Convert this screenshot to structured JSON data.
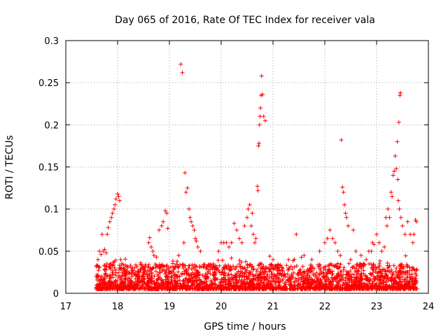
{
  "chart_data": {
    "type": "scatter",
    "title": "Day 065 of 2016, Rate Of TEC Index for receiver vala",
    "xlabel": "GPS time / hours",
    "ylabel": "ROTI / TECUs",
    "xlim": [
      17,
      24
    ],
    "ylim": [
      0,
      0.3
    ],
    "xticks": [
      "17",
      "18",
      "19",
      "20",
      "21",
      "22",
      "23",
      "24"
    ],
    "yticks": [
      "0",
      "0.05",
      "0.1",
      "0.15",
      "0.2",
      "0.25",
      "0.3"
    ],
    "grid": true,
    "marker": "+",
    "color": "#ff0000",
    "data_range_hours": [
      17.58,
      23.78
    ],
    "series": [
      {
        "name": "ROTI",
        "x": [
          17.62,
          17.65,
          17.68,
          17.7,
          17.72,
          17.75,
          17.78,
          17.8,
          17.82,
          17.85,
          17.88,
          17.9,
          17.93,
          17.95,
          17.97,
          18.0,
          18.02,
          18.04,
          18.06,
          18.08,
          18.6,
          18.62,
          18.65,
          18.68,
          18.7,
          18.75,
          18.8,
          18.85,
          18.88,
          18.92,
          18.95,
          18.97,
          19.15,
          19.18,
          19.22,
          19.25,
          19.28,
          19.3,
          19.32,
          19.35,
          19.38,
          19.4,
          19.42,
          19.45,
          19.48,
          19.5,
          19.52,
          19.55,
          19.6,
          19.95,
          20.0,
          20.05,
          20.1,
          20.15,
          20.2,
          20.25,
          20.3,
          20.35,
          20.4,
          20.45,
          20.5,
          20.52,
          20.55,
          20.58,
          20.6,
          20.62,
          20.65,
          20.67,
          20.7,
          20.71,
          20.72,
          20.73,
          20.74,
          20.75,
          20.76,
          20.77,
          20.78,
          20.8,
          20.82,
          20.85,
          21.0,
          21.3,
          21.45,
          21.6,
          21.75,
          21.9,
          22.0,
          22.05,
          22.1,
          22.15,
          22.2,
          22.25,
          22.3,
          22.32,
          22.34,
          22.36,
          22.38,
          22.4,
          22.42,
          22.45,
          22.5,
          22.55,
          22.6,
          22.7,
          22.8,
          22.85,
          22.9,
          22.92,
          22.95,
          23.0,
          23.05,
          23.1,
          23.15,
          23.18,
          23.2,
          23.22,
          23.25,
          23.28,
          23.3,
          23.32,
          23.34,
          23.36,
          23.38,
          23.4,
          23.41,
          23.42,
          23.43,
          23.44,
          23.45,
          23.46,
          23.47,
          23.5,
          23.55,
          23.6,
          23.65,
          23.7,
          23.72,
          23.75,
          23.77
        ],
        "y": [
          0.04,
          0.05,
          0.046,
          0.07,
          0.05,
          0.052,
          0.048,
          0.07,
          0.078,
          0.085,
          0.09,
          0.095,
          0.1,
          0.105,
          0.112,
          0.118,
          0.115,
          0.11,
          0.04,
          0.035,
          0.06,
          0.066,
          0.055,
          0.05,
          0.045,
          0.043,
          0.075,
          0.08,
          0.085,
          0.098,
          0.095,
          0.077,
          0.038,
          0.045,
          0.272,
          0.262,
          0.06,
          0.143,
          0.12,
          0.125,
          0.1,
          0.09,
          0.085,
          0.08,
          0.075,
          0.065,
          0.062,
          0.055,
          0.05,
          0.05,
          0.06,
          0.06,
          0.06,
          0.055,
          0.06,
          0.083,
          0.075,
          0.065,
          0.06,
          0.08,
          0.09,
          0.1,
          0.105,
          0.08,
          0.095,
          0.07,
          0.06,
          0.065,
          0.127,
          0.122,
          0.175,
          0.178,
          0.2,
          0.21,
          0.22,
          0.235,
          0.258,
          0.236,
          0.21,
          0.205,
          0.04,
          0.04,
          0.07,
          0.045,
          0.04,
          0.05,
          0.06,
          0.065,
          0.075,
          0.065,
          0.06,
          0.05,
          0.045,
          0.182,
          0.126,
          0.12,
          0.105,
          0.095,
          0.09,
          0.08,
          0.04,
          0.075,
          0.05,
          0.045,
          0.04,
          0.05,
          0.05,
          0.06,
          0.058,
          0.07,
          0.06,
          0.05,
          0.055,
          0.09,
          0.08,
          0.1,
          0.09,
          0.12,
          0.115,
          0.14,
          0.145,
          0.163,
          0.148,
          0.18,
          0.135,
          0.11,
          0.203,
          0.1,
          0.235,
          0.238,
          0.09,
          0.08,
          0.07,
          0.085,
          0.07,
          0.06,
          0.07,
          0.087,
          0.085
        ],
        "background_band": {
          "x_from": 17.58,
          "x_to": 23.78,
          "y_typical": [
            0.005,
            0.035
          ]
        }
      }
    ]
  }
}
